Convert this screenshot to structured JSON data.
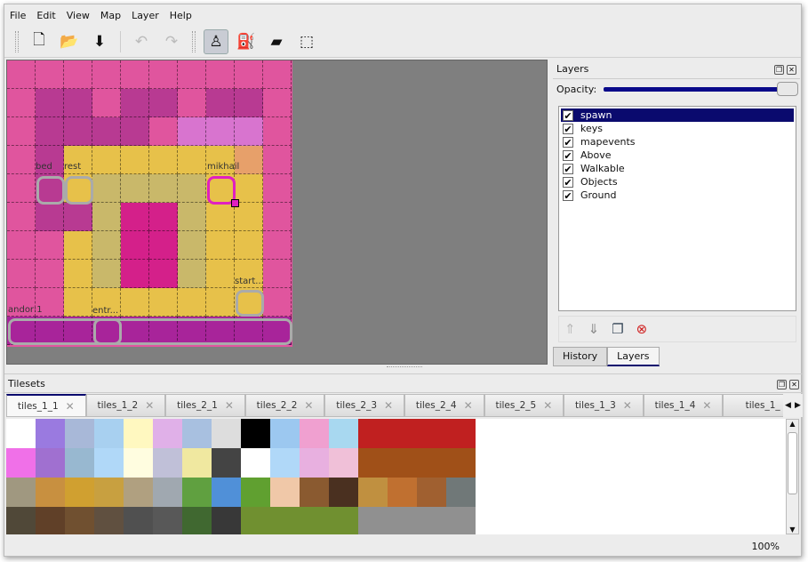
{
  "menu": [
    "File",
    "Edit",
    "View",
    "Map",
    "Layer",
    "Help"
  ],
  "toolbar": [
    {
      "name": "new-icon",
      "glyph": "🗋"
    },
    {
      "name": "open-icon",
      "glyph": "📂"
    },
    {
      "name": "save-icon",
      "glyph": "⬇"
    },
    {
      "name": "undo-icon",
      "glyph": "↶",
      "disabled": true
    },
    {
      "name": "redo-icon",
      "glyph": "↷",
      "disabled": true
    },
    {
      "name": "stamp-brush-icon",
      "glyph": "♙",
      "active": true
    },
    {
      "name": "bucket-fill-icon",
      "glyph": "⛽"
    },
    {
      "name": "eraser-icon",
      "glyph": "▰"
    },
    {
      "name": "rect-select-icon",
      "glyph": "⬚"
    }
  ],
  "map": {
    "objects": [
      {
        "label": "bed"
      },
      {
        "label": "rest"
      },
      {
        "label": "mikhail"
      },
      {
        "label": "start..."
      },
      {
        "label": "andor:1"
      },
      {
        "label": "entr..."
      }
    ],
    "selected_object_color": "#e020c0"
  },
  "layers_panel": {
    "title": "Layers",
    "opacity_label": "Opacity:",
    "opacity": 1.0,
    "items": [
      {
        "name": "spawn",
        "visible": true,
        "selected": true
      },
      {
        "name": "keys",
        "visible": true
      },
      {
        "name": "mapevents",
        "visible": true
      },
      {
        "name": "Above",
        "visible": true
      },
      {
        "name": "Walkable",
        "visible": true
      },
      {
        "name": "Objects",
        "visible": true
      },
      {
        "name": "Ground",
        "visible": true
      }
    ],
    "buttons": [
      "raise-layer-icon",
      "lower-layer-icon",
      "duplicate-layer-icon",
      "remove-layer-icon"
    ],
    "tabs": [
      "History",
      "Layers"
    ],
    "active_tab": "Layers"
  },
  "tilesets_panel": {
    "title": "Tilesets",
    "tabs": [
      "tiles_1_1",
      "tiles_1_2",
      "tiles_2_1",
      "tiles_2_2",
      "tiles_2_3",
      "tiles_2_4",
      "tiles_2_5",
      "tiles_1_3",
      "tiles_1_4",
      "tiles_1_"
    ],
    "active_tab": "tiles_1_1"
  },
  "status": {
    "zoom": "100%"
  }
}
